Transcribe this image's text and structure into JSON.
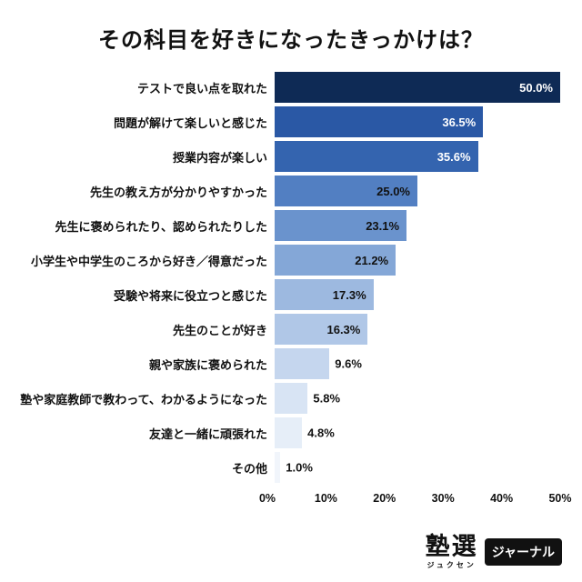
{
  "page": {
    "background": "#ffffff"
  },
  "chart_data": {
    "type": "bar",
    "orientation": "horizontal",
    "title": "その科目を好きになったきっかけは？",
    "categories": [
      "テストで良い点を取れた",
      "問題が解けて楽しいと感じた",
      "授業内容が楽しい",
      "先生の教え方が分かりやすかった",
      "先生に褒められたり、認められたりした",
      "小学生や中学生のころから好き／得意だった",
      "受験や将来に役立つと感じた",
      "先生のことが好き",
      "親や家族に褒められた",
      "塾や家庭教師で教わって、わかるようになった",
      "友達と一緒に頑張れた",
      "その他"
    ],
    "values": [
      50.0,
      36.5,
      35.6,
      25.0,
      23.1,
      21.2,
      17.3,
      16.3,
      9.6,
      5.8,
      4.8,
      1.0
    ],
    "value_labels": [
      "50.0%",
      "36.5%",
      "35.6%",
      "25.0%",
      "23.1%",
      "21.2%",
      "17.3%",
      "16.3%",
      "9.6%",
      "5.8%",
      "4.8%",
      "1.0%"
    ],
    "xlim": [
      0,
      50
    ],
    "x_ticks": [
      "0%",
      "10%",
      "20%",
      "30%",
      "40%",
      "50%"
    ],
    "bar_colors": [
      "#0e2a55",
      "#2a58a5",
      "#3464af",
      "#527fc2",
      "#6a93cd",
      "#84a7d7",
      "#9db9e0",
      "#b0c7e7",
      "#c5d6ee",
      "#d8e4f4",
      "#e6eef8",
      "#f1f5fb"
    ],
    "value_label_inside_threshold": 15,
    "value_label_white_threshold": 30,
    "grid": false,
    "legend": false
  },
  "footer": {
    "logo_main": "塾選",
    "logo_sub": "ジュクセン",
    "logo_badge": "ジャーナル"
  }
}
